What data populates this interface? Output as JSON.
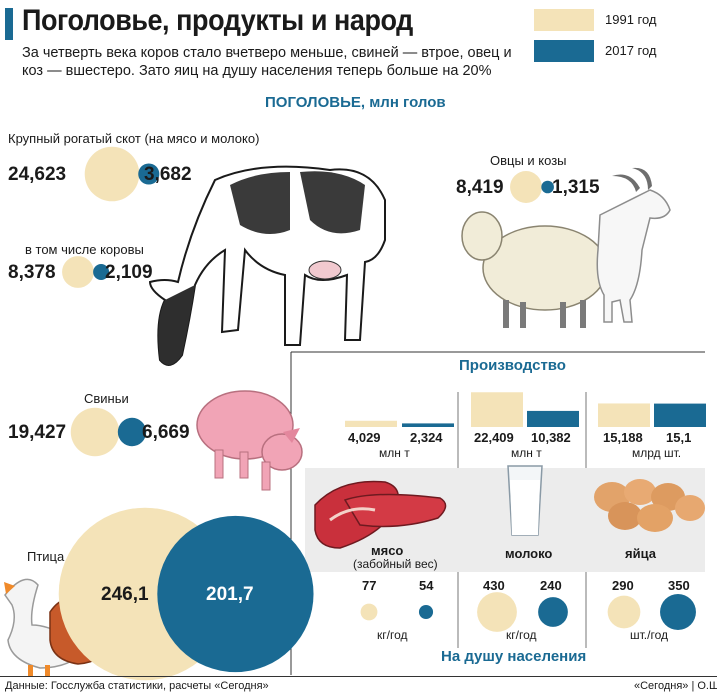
{
  "header": {
    "title": "Поголовье, продукты и народ",
    "subtitle": "За четверть века коров стало вчетверо меньше, свиней — втрое, овец и коз — вшестеро. Зато яиц на душу населения теперь больше на 20%"
  },
  "legend": [
    {
      "label": "1991 год",
      "color": "#f4e3b8"
    },
    {
      "label": "2017 год",
      "color": "#1a6a93"
    }
  ],
  "livestock": {
    "section_title": "ПОГОЛОВЬЕ, млн голов",
    "items": [
      {
        "label": "Крупный рогатый скот (на мясо и молоко)",
        "v1991": "24,623",
        "v2017": "3,682"
      },
      {
        "label": "в том числе коровы",
        "v1991": "8,378",
        "v2017": "2,109"
      },
      {
        "label": "Овцы и козы",
        "v1991": "8,419",
        "v2017": "1,315"
      },
      {
        "label": "Свиньи",
        "v1991": "19,427",
        "v2017": "6,669"
      },
      {
        "label": "Птица",
        "v1991": "246,1",
        "v2017": "201,7"
      }
    ]
  },
  "production": {
    "section_title": "Производство",
    "items": [
      {
        "name": "мясо",
        "sub": "(забойный вес)",
        "v1991": "4,029",
        "v2017": "2,324",
        "unit": "млн т"
      },
      {
        "name": "молоко",
        "sub": "",
        "v1991": "22,409",
        "v2017": "10,382",
        "unit": "млн т"
      },
      {
        "name": "яйца",
        "sub": "",
        "v1991": "15,188",
        "v2017": "15,1",
        "unit": "млрд шт."
      }
    ]
  },
  "per_capita": {
    "section_title": "На душу населения",
    "items": [
      {
        "v1991": "77",
        "v2017": "54",
        "unit": "кг/год"
      },
      {
        "v1991": "430",
        "v2017": "240",
        "unit": "кг/год"
      },
      {
        "v1991": "290",
        "v2017": "350",
        "unit": "шт./год"
      }
    ]
  },
  "footer": {
    "source": "Данные: Госслужба статистики, расчеты «Сегодня»",
    "credit": "«Сегодня» | О.Ш."
  },
  "chart_data": [
    {
      "type": "bubble",
      "title": "ПОГОЛОВЬЕ, млн голов",
      "categories": [
        "Крупный рогатый скот (на мясо и молоко)",
        "в том числе коровы",
        "Овцы и козы",
        "Свиньи",
        "Птица"
      ],
      "series": [
        {
          "name": "1991 год",
          "values": [
            24.623,
            8.378,
            8.419,
            19.427,
            246.1
          ]
        },
        {
          "name": "2017 год",
          "values": [
            3.682,
            2.109,
            1.315,
            6.669,
            201.7
          ]
        }
      ]
    },
    {
      "type": "bar",
      "title": "Производство",
      "categories": [
        "мясо",
        "молоко",
        "яйца"
      ],
      "units": [
        "млн т",
        "млн т",
        "млрд шт."
      ],
      "series": [
        {
          "name": "1991 год",
          "values": [
            4.029,
            22.409,
            15.188
          ]
        },
        {
          "name": "2017 год",
          "values": [
            2.324,
            10.382,
            15.1
          ]
        }
      ]
    },
    {
      "type": "bubble",
      "title": "На душу населения",
      "categories": [
        "мясо",
        "молоко",
        "яйца"
      ],
      "units": [
        "кг/год",
        "кг/год",
        "шт./год"
      ],
      "series": [
        {
          "name": "1991 год",
          "values": [
            77,
            430,
            290
          ]
        },
        {
          "name": "2017 год",
          "values": [
            54,
            240,
            350
          ]
        }
      ]
    }
  ]
}
